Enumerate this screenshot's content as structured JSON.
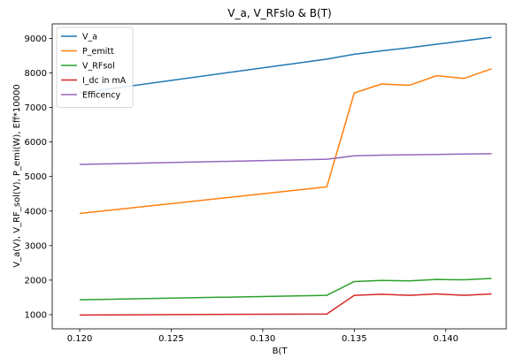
{
  "chart_data": {
    "type": "line",
    "title": "V_a, V_RFslo & B(T)",
    "xlabel": "B(T",
    "ylabel": "V_a(V), V_RF_sol(V), P_emi(W), Eff*10000",
    "xlim": [
      0.1185,
      0.1433
    ],
    "ylim": [
      590,
      9420
    ],
    "xticks": [
      0.12,
      0.125,
      0.13,
      0.135,
      0.14
    ],
    "xtick_labels": [
      "0.120",
      "0.125",
      "0.130",
      "0.135",
      "0.140"
    ],
    "yticks": [
      1000,
      2000,
      3000,
      4000,
      5000,
      6000,
      7000,
      8000,
      9000
    ],
    "ytick_labels": [
      "1000",
      "2000",
      "3000",
      "4000",
      "5000",
      "6000",
      "7000",
      "8000",
      "9000"
    ],
    "grid": false,
    "legend_position": "upper-left",
    "series": [
      {
        "name": "V_a",
        "color": "#1f77b4",
        "x": [
          0.12,
          0.1335,
          0.135,
          0.1365,
          0.138,
          0.1395,
          0.141,
          0.1425
        ],
        "y": [
          7420,
          8400,
          8540,
          8640,
          8730,
          8830,
          8930,
          9030
        ]
      },
      {
        "name": "P_emitt",
        "color": "#ff7f0e",
        "x": [
          0.12,
          0.1335,
          0.135,
          0.1365,
          0.138,
          0.1395,
          0.141,
          0.1425
        ],
        "y": [
          3930,
          4700,
          7420,
          7680,
          7640,
          7920,
          7840,
          8120
        ]
      },
      {
        "name": "V_RFsol",
        "color": "#2ca02c",
        "x": [
          0.12,
          0.1335,
          0.135,
          0.1365,
          0.138,
          0.1395,
          0.141,
          0.1425
        ],
        "y": [
          1430,
          1560,
          1960,
          1990,
          1980,
          2020,
          2010,
          2050
        ]
      },
      {
        "name": "I_dc in mA",
        "color": "#d62728",
        "x": [
          0.12,
          0.1335,
          0.135,
          0.1365,
          0.138,
          0.1395,
          0.141,
          0.1425
        ],
        "y": [
          990,
          1020,
          1560,
          1590,
          1560,
          1600,
          1560,
          1600
        ]
      },
      {
        "name": "Efficency",
        "color": "#9467bd",
        "x": [
          0.12,
          0.1335,
          0.135,
          0.1365,
          0.138,
          0.1395,
          0.141,
          0.1425
        ],
        "y": [
          5350,
          5500,
          5600,
          5620,
          5630,
          5640,
          5650,
          5660
        ]
      }
    ]
  }
}
